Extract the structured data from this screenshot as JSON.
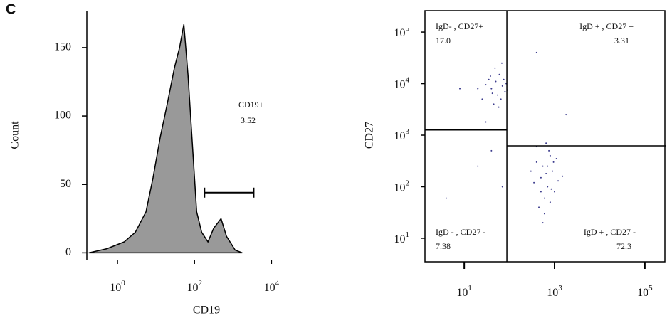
{
  "panel_label": "C",
  "chart_data": [
    {
      "type": "area",
      "x_label": "CD19",
      "y_label": "Count",
      "xscale": "log",
      "color": "#999999",
      "line_color": "#000000",
      "x": [
        0.18,
        0.53,
        1.5,
        2.9,
        5.5,
        8.4,
        13,
        20,
        30,
        41,
        53,
        68,
        88,
        114,
        154,
        224,
        316,
        490,
        680,
        1140,
        1740
      ],
      "values": [
        0,
        3,
        8,
        15,
        30,
        55,
        85,
        110,
        135,
        150,
        167,
        130,
        80,
        30,
        15,
        8,
        18,
        25,
        12,
        2,
        0
      ],
      "xlim": [
        0.16,
        230000
      ],
      "ylim": [
        -5,
        177
      ],
      "xticks": [
        {
          "value": 1,
          "label": "10",
          "superscript": "0"
        },
        {
          "value": 100,
          "label": "10",
          "superscript": "2"
        },
        {
          "value": 10000,
          "label": "10",
          "superscript": "4"
        }
      ],
      "yticks": [
        0,
        50,
        100,
        150
      ],
      "gate": {
        "x": [
          182,
          3460
        ],
        "y": 44,
        "label": "CD19+",
        "percent": 3.52
      }
    },
    {
      "type": "scatter",
      "y_label": "CD27",
      "xscale": "log",
      "yscale": "log",
      "color": "#3a3a8c",
      "x": [
        40,
        55,
        35,
        70,
        25,
        60,
        45,
        80,
        30,
        50,
        65,
        20,
        75,
        42,
        58,
        85,
        38,
        48,
        68,
        90,
        500,
        700,
        400,
        900,
        600,
        800,
        350,
        1000,
        550,
        650,
        450,
        1200,
        750,
        300,
        850,
        950,
        600,
        700,
        500,
        1500,
        400,
        650,
        550,
        800,
        1100,
        4,
        20,
        40,
        400,
        1800,
        8,
        70,
        30
      ],
      "values": [
        8000,
        6000,
        12000,
        9000,
        5000,
        15000,
        4000,
        7000,
        9500,
        11000,
        5000,
        8000,
        12000,
        6500,
        3500,
        10000,
        14000,
        20000,
        25000,
        7500,
        150,
        100,
        300,
        200,
        60,
        400,
        120,
        80,
        250,
        180,
        40,
        130,
        500,
        200,
        90,
        300,
        30,
        250,
        80,
        160,
        600,
        700,
        20,
        50,
        350,
        60,
        250,
        500,
        40000,
        2500,
        8000,
        100,
        1800
      ],
      "xlim": [
        1.35,
        288000
      ],
      "ylim": [
        3.5,
        260000
      ],
      "xticks": [
        {
          "value": 10,
          "label": "10",
          "superscript": "1"
        },
        {
          "value": 1000,
          "label": "10",
          "superscript": "3"
        },
        {
          "value": 100000,
          "label": "10",
          "superscript": "5"
        }
      ],
      "yticks": [
        {
          "value": 10,
          "label": "10",
          "superscript": "1"
        },
        {
          "value": 100,
          "label": "10",
          "superscript": "2"
        },
        {
          "value": 1000,
          "label": "10",
          "superscript": "3"
        },
        {
          "value": 10000,
          "label": "10",
          "superscript": "4"
        },
        {
          "value": 100000,
          "label": "10",
          "superscript": "5"
        }
      ],
      "quadrants": {
        "x_split": 88,
        "y_split_left": 1260,
        "y_split_right": 620,
        "labels": [
          {
            "text": "IgD- , CD27+",
            "value": 17,
            "value_label": "17.0"
          },
          {
            "text": "IgD + , CD27 +",
            "value": 3.31
          },
          {
            "text": "IgD - , CD27 -",
            "value": 7.38
          },
          {
            "text": "IgD + , CD27 -",
            "value": 72.3
          }
        ]
      }
    }
  ]
}
